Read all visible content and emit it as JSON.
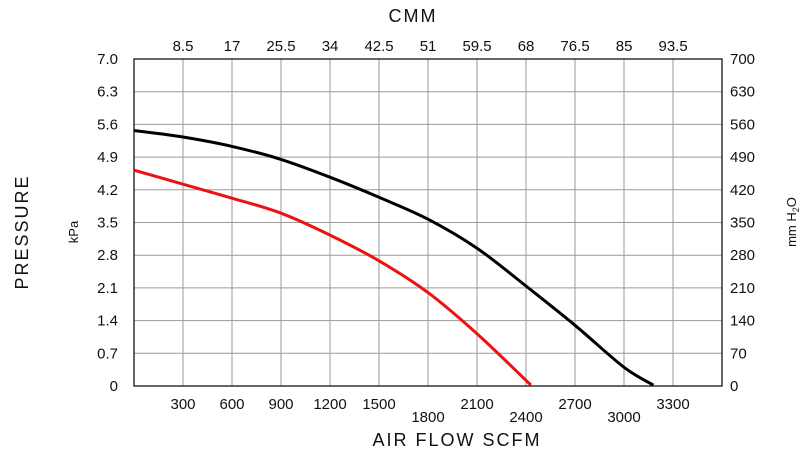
{
  "chart_data": {
    "type": "line",
    "title": "",
    "xlabel": "AIR FLOW SCFM",
    "x2label": "CMM",
    "ylabel": "PRESSURE",
    "yunit_left": "kPa",
    "yunit_right_main": "mm H",
    "yunit_right_sub": "2",
    "yunit_right_tail": "O",
    "xlim": [
      0,
      3600
    ],
    "ylim": [
      0,
      7.0
    ],
    "grid": true,
    "legend": "none",
    "x_ticks": [
      {
        "v": 300,
        "label": "300",
        "row": 0
      },
      {
        "v": 600,
        "label": "600",
        "row": 0
      },
      {
        "v": 900,
        "label": "900",
        "row": 0
      },
      {
        "v": 1200,
        "label": "1200",
        "row": 0
      },
      {
        "v": 1500,
        "label": "1500",
        "row": 0
      },
      {
        "v": 1800,
        "label": "1800",
        "row": 1
      },
      {
        "v": 2100,
        "label": "2100",
        "row": 0
      },
      {
        "v": 2400,
        "label": "2400",
        "row": 1
      },
      {
        "v": 2700,
        "label": "2700",
        "row": 0
      },
      {
        "v": 3000,
        "label": "3000",
        "row": 1
      },
      {
        "v": 3300,
        "label": "3300",
        "row": 0
      }
    ],
    "x2_ticks": [
      {
        "v": 8.5,
        "label": "8.5"
      },
      {
        "v": 17,
        "label": "17"
      },
      {
        "v": 25.5,
        "label": "25.5"
      },
      {
        "v": 34,
        "label": "34"
      },
      {
        "v": 42.5,
        "label": "42.5"
      },
      {
        "v": 51,
        "label": "51"
      },
      {
        "v": 59.5,
        "label": "59.5"
      },
      {
        "v": 68,
        "label": "68"
      },
      {
        "v": 76.5,
        "label": "76.5"
      },
      {
        "v": 85,
        "label": "85"
      },
      {
        "v": 93.5,
        "label": "93.5"
      }
    ],
    "x2_to_x_factor": 35.3,
    "y_ticks": [
      "0",
      "0.7",
      "1.4",
      "2.1",
      "2.8",
      "3.5",
      "4.2",
      "4.9",
      "5.6",
      "6.3",
      "7.0"
    ],
    "y2_ticks": [
      "0",
      "70",
      "140",
      "210",
      "280",
      "350",
      "420",
      "490",
      "560",
      "630",
      "700"
    ],
    "series": [
      {
        "color": "#000000",
        "points": [
          [
            0,
            5.47
          ],
          [
            300,
            5.33
          ],
          [
            600,
            5.13
          ],
          [
            900,
            4.85
          ],
          [
            1200,
            4.47
          ],
          [
            1500,
            4.04
          ],
          [
            1800,
            3.57
          ],
          [
            2100,
            2.95
          ],
          [
            2400,
            2.14
          ],
          [
            2700,
            1.3
          ],
          [
            3000,
            0.4
          ],
          [
            3180,
            0.02
          ]
        ]
      },
      {
        "color": "#ee1111",
        "points": [
          [
            0,
            4.62
          ],
          [
            300,
            4.32
          ],
          [
            600,
            4.02
          ],
          [
            900,
            3.7
          ],
          [
            1200,
            3.23
          ],
          [
            1500,
            2.68
          ],
          [
            1800,
            2.0
          ],
          [
            2100,
            1.12
          ],
          [
            2430,
            0.02
          ]
        ]
      }
    ]
  }
}
